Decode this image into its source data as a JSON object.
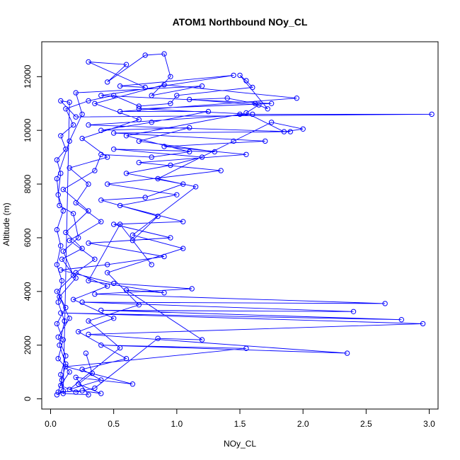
{
  "chart_data": {
    "type": "scatter",
    "title": "ATOM1 Northbound NOy_CL",
    "xlabel": "NOy_CL",
    "ylabel": "Altitude (m)",
    "xlim": [
      -0.07,
      3.07
    ],
    "ylim": [
      -380,
      13300
    ],
    "x_ticks": [
      0.0,
      0.5,
      1.0,
      1.5,
      2.0,
      2.5,
      3.0
    ],
    "x_tick_labels": [
      "0.0",
      "0.5",
      "1.0",
      "1.5",
      "2.0",
      "2.5",
      "3.0"
    ],
    "y_ticks": [
      0,
      2000,
      4000,
      6000,
      8000,
      10000,
      12000
    ],
    "y_tick_labels": [
      "0",
      "2000",
      "4000",
      "6000",
      "8000",
      "10000",
      "12000"
    ],
    "grid": false,
    "legend": "none",
    "series_color": "#0000ff",
    "series": [
      {
        "style": "points-and-lines",
        "points": [
          [
            0.05,
            150
          ],
          [
            0.1,
            300
          ],
          [
            0.08,
            900
          ],
          [
            0.12,
            1600
          ],
          [
            0.06,
            2300
          ],
          [
            0.15,
            3000
          ],
          [
            0.07,
            3800
          ],
          [
            0.2,
            4500
          ],
          [
            0.09,
            5200
          ],
          [
            0.25,
            5600
          ],
          [
            0.12,
            6200
          ],
          [
            0.3,
            7000
          ],
          [
            0.1,
            7800
          ],
          [
            0.35,
            8500
          ],
          [
            0.4,
            9100
          ],
          [
            0.8,
            9000
          ],
          [
            1.1,
            9200
          ],
          [
            0.6,
            9800
          ],
          [
            1.5,
            10600
          ],
          [
            3.02,
            10600
          ],
          [
            0.2,
            10500
          ],
          [
            0.08,
            11100
          ],
          [
            0.15,
            11050
          ],
          [
            0.1,
            200
          ],
          [
            0.3,
            150
          ],
          [
            0.2,
            800
          ],
          [
            0.65,
            550
          ],
          [
            0.12,
            1200
          ],
          [
            1.55,
            1880
          ],
          [
            0.4,
            2000
          ],
          [
            2.35,
            1700
          ],
          [
            0.3,
            2400
          ],
          [
            2.95,
            2800
          ],
          [
            0.08,
            3200
          ],
          [
            2.78,
            2950
          ],
          [
            0.4,
            3300
          ],
          [
            2.4,
            3250
          ],
          [
            0.25,
            3600
          ],
          [
            2.65,
            3550
          ],
          [
            0.35,
            3900
          ],
          [
            1.12,
            4100
          ],
          [
            0.5,
            4300
          ],
          [
            0.08,
            4800
          ],
          [
            0.45,
            5000
          ],
          [
            0.9,
            5300
          ],
          [
            0.3,
            5800
          ],
          [
            0.95,
            6000
          ],
          [
            0.5,
            6500
          ],
          [
            1.05,
            6600
          ],
          [
            0.55,
            7200
          ],
          [
            1.0,
            7600
          ],
          [
            0.45,
            8000
          ],
          [
            1.35,
            8500
          ],
          [
            0.7,
            8800
          ],
          [
            1.55,
            9100
          ],
          [
            0.9,
            9400
          ],
          [
            1.7,
            9600
          ],
          [
            0.5,
            9900
          ],
          [
            1.9,
            9950
          ],
          [
            0.3,
            10200
          ],
          [
            1.6,
            10600
          ],
          [
            0.7,
            10800
          ],
          [
            1.75,
            11000
          ],
          [
            0.4,
            11300
          ],
          [
            1.45,
            12050
          ],
          [
            0.55,
            11650
          ],
          [
            0.75,
            11600
          ],
          [
            0.3,
            12550
          ],
          [
            0.6,
            12450
          ],
          [
            0.45,
            11800
          ],
          [
            0.75,
            12800
          ],
          [
            0.9,
            12850
          ],
          [
            0.95,
            12000
          ],
          [
            0.8,
            11300
          ],
          [
            1.2,
            11650
          ],
          [
            0.2,
            11400
          ],
          [
            0.25,
            10600
          ],
          [
            0.15,
            9600
          ],
          [
            0.05,
            8200
          ],
          [
            0.07,
            7200
          ],
          [
            0.18,
            6900
          ],
          [
            0.22,
            6000
          ],
          [
            0.1,
            5500
          ],
          [
            0.18,
            4600
          ],
          [
            0.05,
            4000
          ],
          [
            0.12,
            3400
          ],
          [
            0.05,
            2800
          ],
          [
            0.1,
            2200
          ],
          [
            0.06,
            1500
          ],
          [
            0.15,
            1000
          ],
          [
            0.08,
            500
          ],
          [
            0.2,
            250
          ],
          [
            0.35,
            400
          ],
          [
            0.85,
            2250
          ],
          [
            1.2,
            2200
          ],
          [
            0.6,
            4050
          ],
          [
            0.9,
            3950
          ],
          [
            0.3,
            4400
          ],
          [
            0.55,
            6500
          ],
          [
            0.8,
            5000
          ],
          [
            0.65,
            5900
          ],
          [
            0.85,
            6800
          ],
          [
            0.4,
            7400
          ],
          [
            0.75,
            7500
          ],
          [
            1.05,
            8000
          ],
          [
            0.6,
            8400
          ],
          [
            0.95,
            8700
          ],
          [
            1.2,
            9000
          ],
          [
            0.5,
            9300
          ],
          [
            1.3,
            9200
          ],
          [
            0.7,
            9600
          ],
          [
            1.1,
            10100
          ],
          [
            0.4,
            10000
          ],
          [
            0.8,
            10300
          ],
          [
            1.25,
            10700
          ],
          [
            0.55,
            10700
          ],
          [
            1.95,
            11200
          ],
          [
            0.9,
            11700
          ],
          [
            0.35,
            11000
          ],
          [
            0.7,
            10400
          ],
          [
            0.25,
            9700
          ],
          [
            0.45,
            9000
          ],
          [
            0.15,
            8600
          ],
          [
            0.3,
            8000
          ],
          [
            0.2,
            7300
          ],
          [
            0.4,
            6600
          ],
          [
            0.15,
            5900
          ],
          [
            0.35,
            5200
          ],
          [
            0.2,
            4700
          ],
          [
            0.45,
            4200
          ],
          [
            0.18,
            3700
          ],
          [
            0.5,
            3000
          ],
          [
            0.22,
            2500
          ],
          [
            0.6,
            1500
          ],
          [
            0.25,
            1100
          ],
          [
            0.4,
            700
          ],
          [
            0.15,
            350
          ],
          [
            0.55,
            1900
          ],
          [
            0.3,
            2900
          ],
          [
            0.7,
            3500
          ],
          [
            0.45,
            4700
          ],
          [
            1.05,
            5600
          ],
          [
            0.65,
            6100
          ],
          [
            1.15,
            7900
          ],
          [
            0.85,
            8200
          ],
          [
            1.45,
            9600
          ],
          [
            1.75,
            10300
          ],
          [
            2.0,
            10050
          ],
          [
            1.85,
            9950
          ],
          [
            1.55,
            10650
          ],
          [
            1.65,
            10950
          ],
          [
            1.1,
            11150
          ],
          [
            1.4,
            11200
          ],
          [
            1.62,
            11000
          ],
          [
            1.72,
            10800
          ],
          [
            1.5,
            12050
          ],
          [
            1.55,
            11850
          ],
          [
            1.6,
            11600
          ],
          [
            1.0,
            11300
          ],
          [
            0.95,
            11000
          ],
          [
            0.7,
            10900
          ],
          [
            0.5,
            11300
          ],
          [
            0.3,
            11100
          ],
          [
            0.12,
            10800
          ],
          [
            0.18,
            10200
          ],
          [
            0.08,
            9800
          ],
          [
            0.12,
            9300
          ],
          [
            0.05,
            8900
          ],
          [
            0.08,
            8400
          ],
          [
            0.06,
            7600
          ],
          [
            0.1,
            7000
          ],
          [
            0.05,
            6300
          ],
          [
            0.08,
            5700
          ],
          [
            0.05,
            5000
          ],
          [
            0.09,
            4400
          ],
          [
            0.06,
            3600
          ],
          [
            0.11,
            2900
          ],
          [
            0.07,
            2000
          ],
          [
            0.12,
            1300
          ],
          [
            0.09,
            700
          ],
          [
            0.06,
            250
          ],
          [
            0.25,
            300
          ],
          [
            0.4,
            200
          ],
          [
            0.22,
            550
          ],
          [
            0.33,
            950
          ],
          [
            0.28,
            1700
          ]
        ]
      }
    ]
  }
}
